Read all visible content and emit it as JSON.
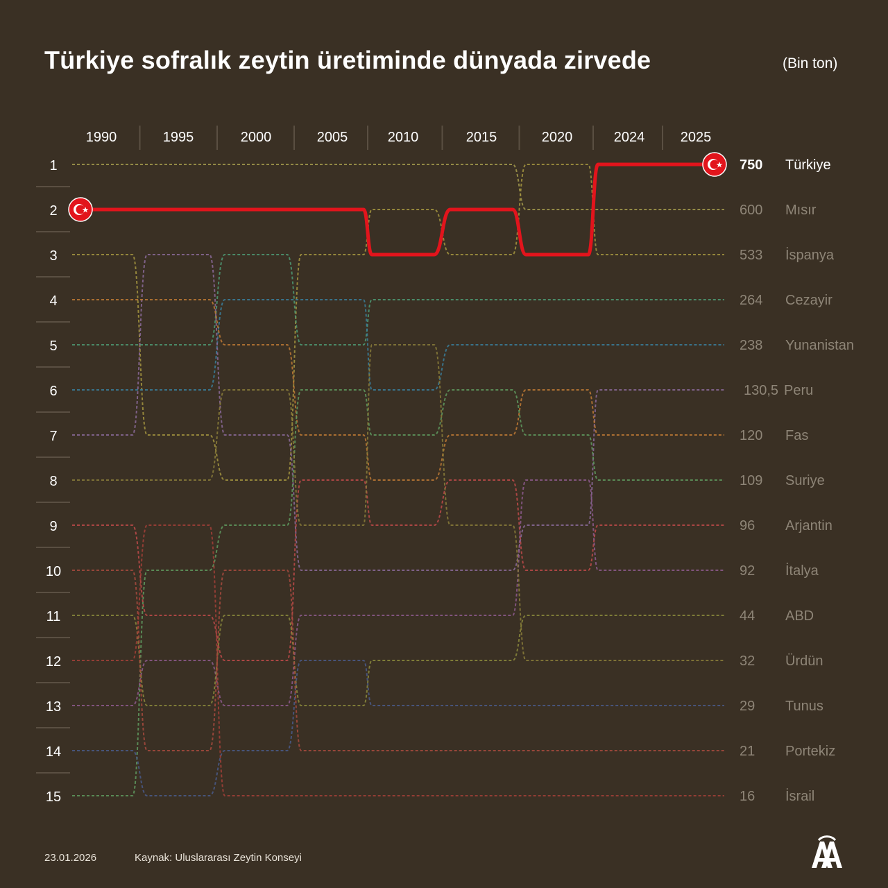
{
  "title": "Türkiye sofralık zeytin üretiminde dünyada zirvede",
  "unit": "(Bin ton)",
  "footer": {
    "date": "23.01.2026",
    "source": "Kaynak: Uluslararası Zeytin Konseyi"
  },
  "logo_icon": "aa-logo-icon",
  "colors": {
    "background": "#3a3024",
    "turkiye": "#e2141c",
    "highlight_text": "#ffffff",
    "muted_text": "#8e8577"
  },
  "chart_data": {
    "type": "bump",
    "x": [
      "1990",
      "1995",
      "2000",
      "2005",
      "2010",
      "2015",
      "2020",
      "2024",
      "2025"
    ],
    "ranks": [
      "1",
      "2",
      "3",
      "4",
      "5",
      "6",
      "7",
      "8",
      "9",
      "10",
      "11",
      "12",
      "13",
      "14",
      "15"
    ],
    "highlight": "Türkiye",
    "series": [
      {
        "name": "Türkiye",
        "value": "750",
        "color": "#e2141c",
        "ranks": [
          2,
          2,
          2,
          2,
          3,
          2,
          3,
          1,
          1
        ]
      },
      {
        "name": "Mısır",
        "value": "600",
        "color": "#a39a4c",
        "ranks": [
          1,
          1,
          1,
          1,
          1,
          1,
          2,
          2,
          2
        ]
      },
      {
        "name": "İspanya",
        "value": "533",
        "color": "#a5953f",
        "ranks": [
          3,
          7,
          8,
          3,
          2,
          3,
          1,
          3,
          3
        ]
      },
      {
        "name": "Cezayir",
        "value": "264",
        "color": "#4d9a74",
        "ranks": [
          5,
          5,
          3,
          5,
          4,
          4,
          4,
          4,
          4
        ]
      },
      {
        "name": "Yunanistan",
        "value": "238",
        "color": "#3a7f9c",
        "ranks": [
          6,
          6,
          4,
          4,
          6,
          5,
          5,
          5,
          5
        ]
      },
      {
        "name": "Peru",
        "value": "130,5",
        "color": "#8b6a9a",
        "ranks": [
          7,
          3,
          7,
          10,
          10,
          10,
          9,
          6,
          6
        ]
      },
      {
        "name": "Fas",
        "value": "120",
        "color": "#c07a35",
        "ranks": [
          4,
          4,
          5,
          7,
          8,
          7,
          6,
          7,
          7
        ]
      },
      {
        "name": "Suriye",
        "value": "109",
        "color": "#5f9a5f",
        "ranks": [
          15,
          10,
          9,
          6,
          7,
          6,
          7,
          8,
          8
        ]
      },
      {
        "name": "Arjantin",
        "value": "96",
        "color": "#c04a4a",
        "ranks": [
          9,
          11,
          12,
          8,
          9,
          8,
          10,
          9,
          9
        ]
      },
      {
        "name": "İtalya",
        "value": "92",
        "color": "#8e5a8e",
        "ranks": [
          13,
          12,
          13,
          11,
          11,
          11,
          8,
          10,
          10
        ]
      },
      {
        "name": "ABD",
        "value": "44",
        "color": "#8b8a3c",
        "ranks": [
          11,
          13,
          11,
          13,
          12,
          12,
          11,
          11,
          11
        ]
      },
      {
        "name": "Ürdün",
        "value": "32",
        "color": "#8a7d3a",
        "ranks": [
          8,
          8,
          6,
          9,
          5,
          9,
          12,
          12,
          12
        ]
      },
      {
        "name": "Tunus",
        "value": "29",
        "color": "#4a5a8a",
        "ranks": [
          14,
          15,
          14,
          12,
          13,
          13,
          13,
          13,
          13
        ]
      },
      {
        "name": "Portekiz",
        "value": "21",
        "color": "#a84a3e",
        "ranks": [
          10,
          14,
          10,
          14,
          14,
          14,
          14,
          14,
          14
        ]
      },
      {
        "name": "İsrail",
        "value": "16",
        "color": "#a34038",
        "ranks": [
          12,
          9,
          15,
          15,
          15,
          15,
          15,
          15,
          15
        ]
      }
    ]
  }
}
